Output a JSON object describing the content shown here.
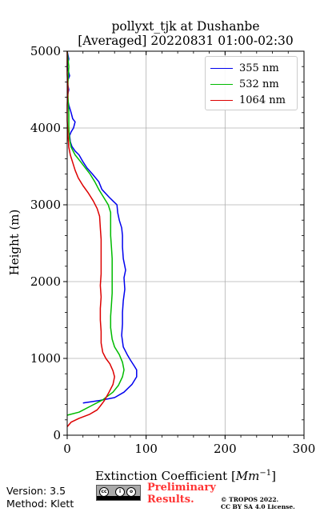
{
  "header": {
    "title_line1": "pollyxt_tjk at Dushanbe",
    "title_line2": "[Averaged] 20220831 01:00-02:30"
  },
  "chart_data": {
    "type": "line",
    "xlabel_text": "Extinction Coefficient [",
    "xlabel_unit": "Mm",
    "xlabel_exp": "−1",
    "xlabel_end": "]",
    "ylabel": "Height (m)",
    "xlim": [
      0,
      300
    ],
    "ylim": [
      0,
      5000
    ],
    "xticks": [
      0,
      100,
      200,
      300
    ],
    "yticks": [
      0,
      1000,
      2000,
      3000,
      4000,
      5000
    ],
    "xtick_labels": [
      "0",
      "100",
      "200",
      "300"
    ],
    "ytick_labels": [
      "0",
      "1000",
      "2000",
      "3000",
      "4000",
      "5000"
    ],
    "grid": true,
    "legend_position": "top-right",
    "series": [
      {
        "name": "355 nm",
        "color": "#0000ee",
        "points": [
          [
            20,
            420
          ],
          [
            40,
            450
          ],
          [
            60,
            490
          ],
          [
            72,
            560
          ],
          [
            82,
            660
          ],
          [
            88,
            760
          ],
          [
            88,
            850
          ],
          [
            85,
            900
          ],
          [
            80,
            980
          ],
          [
            76,
            1050
          ],
          [
            71,
            1150
          ],
          [
            69,
            1300
          ],
          [
            70,
            1450
          ],
          [
            70,
            1600
          ],
          [
            71,
            1750
          ],
          [
            73,
            1900
          ],
          [
            72,
            2050
          ],
          [
            74,
            2150
          ],
          [
            71,
            2300
          ],
          [
            70,
            2450
          ],
          [
            70,
            2600
          ],
          [
            69,
            2700
          ],
          [
            66,
            2800
          ],
          [
            64,
            2900
          ],
          [
            63,
            3000
          ],
          [
            58,
            3050
          ],
          [
            53,
            3100
          ],
          [
            44,
            3200
          ],
          [
            40,
            3300
          ],
          [
            32,
            3400
          ],
          [
            25,
            3480
          ],
          [
            20,
            3560
          ],
          [
            15,
            3650
          ],
          [
            10,
            3700
          ],
          [
            6,
            3760
          ],
          [
            4,
            3820
          ],
          [
            3,
            3900
          ],
          [
            5,
            3950
          ],
          [
            8,
            4000
          ],
          [
            10,
            4080
          ],
          [
            7,
            4120
          ],
          [
            5,
            4200
          ],
          [
            2,
            4300
          ],
          [
            0,
            4400
          ],
          [
            2,
            4500
          ],
          [
            0,
            4600
          ],
          [
            3,
            4680
          ],
          [
            2,
            4720
          ],
          [
            0,
            4800
          ],
          [
            2,
            4900
          ],
          [
            0,
            5000
          ]
        ]
      },
      {
        "name": "532 nm",
        "color": "#00bb00",
        "points": [
          [
            0,
            260
          ],
          [
            15,
            300
          ],
          [
            30,
            380
          ],
          [
            45,
            460
          ],
          [
            58,
            560
          ],
          [
            65,
            650
          ],
          [
            70,
            760
          ],
          [
            72,
            850
          ],
          [
            70,
            950
          ],
          [
            66,
            1050
          ],
          [
            60,
            1150
          ],
          [
            57,
            1250
          ],
          [
            55,
            1400
          ],
          [
            55,
            1550
          ],
          [
            56,
            1700
          ],
          [
            57,
            1850
          ],
          [
            57,
            2000
          ],
          [
            57,
            2150
          ],
          [
            57,
            2300
          ],
          [
            56,
            2450
          ],
          [
            55,
            2600
          ],
          [
            55,
            2750
          ],
          [
            55,
            2900
          ],
          [
            52,
            3000
          ],
          [
            46,
            3100
          ],
          [
            40,
            3200
          ],
          [
            35,
            3300
          ],
          [
            29,
            3400
          ],
          [
            23,
            3480
          ],
          [
            17,
            3560
          ],
          [
            10,
            3650
          ],
          [
            5,
            3750
          ],
          [
            3,
            3850
          ],
          [
            2,
            4000
          ],
          [
            2,
            4200
          ],
          [
            1,
            4400
          ],
          [
            1,
            4600
          ],
          [
            2,
            4800
          ],
          [
            0,
            5000
          ]
        ]
      },
      {
        "name": "1064 nm",
        "color": "#dd0000",
        "points": [
          [
            0,
            110
          ],
          [
            5,
            170
          ],
          [
            15,
            220
          ],
          [
            28,
            270
          ],
          [
            38,
            330
          ],
          [
            42,
            380
          ],
          [
            47,
            450
          ],
          [
            53,
            560
          ],
          [
            58,
            660
          ],
          [
            60,
            760
          ],
          [
            58,
            840
          ],
          [
            54,
            930
          ],
          [
            49,
            1000
          ],
          [
            45,
            1080
          ],
          [
            43,
            1200
          ],
          [
            43,
            1350
          ],
          [
            42,
            1500
          ],
          [
            42,
            1650
          ],
          [
            43,
            1800
          ],
          [
            42,
            1950
          ],
          [
            43,
            2100
          ],
          [
            43,
            2250
          ],
          [
            43,
            2400
          ],
          [
            43,
            2550
          ],
          [
            42,
            2700
          ],
          [
            41,
            2850
          ],
          [
            38,
            2950
          ],
          [
            33,
            3050
          ],
          [
            27,
            3150
          ],
          [
            20,
            3250
          ],
          [
            14,
            3350
          ],
          [
            10,
            3450
          ],
          [
            7,
            3550
          ],
          [
            4,
            3650
          ],
          [
            2,
            3750
          ],
          [
            1,
            3900
          ],
          [
            0,
            4100
          ],
          [
            0,
            4300
          ],
          [
            1,
            4500
          ],
          [
            0,
            4700
          ],
          [
            0,
            5000
          ]
        ]
      }
    ]
  },
  "footer": {
    "version": "Version: 3.5",
    "method": "Method: Klett",
    "preliminary_line1": "Preliminary",
    "preliminary_line2": "Results.",
    "copyright_line1": "© TROPOS 2022.",
    "copyright_line2": "CC BY SA 4.0 License."
  }
}
